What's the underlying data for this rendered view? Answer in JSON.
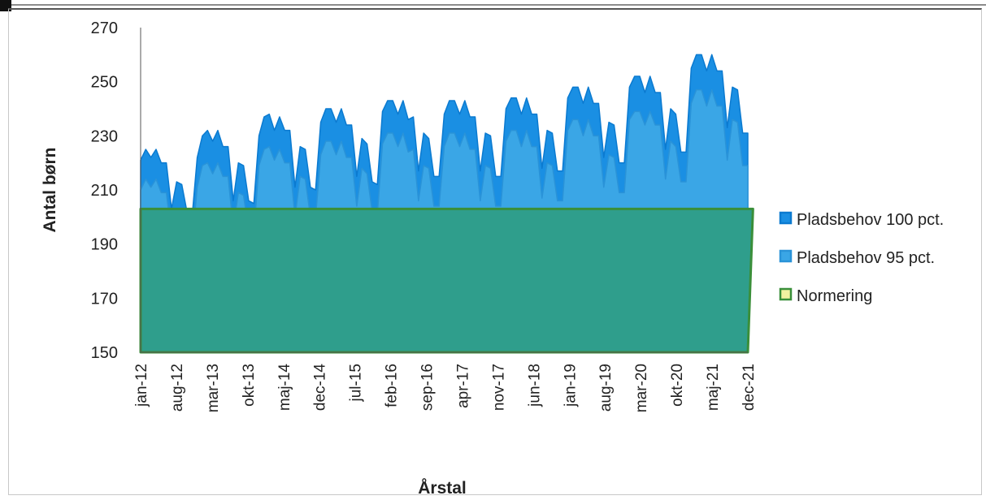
{
  "chart_data": {
    "type": "area",
    "title": "",
    "xlabel": "Årstal",
    "ylabel": "Antal børn",
    "ylim": [
      150,
      270
    ],
    "yticks": [
      150,
      170,
      190,
      210,
      230,
      250,
      270
    ],
    "x_tick_labels": [
      "jan-12",
      "aug-12",
      "mar-13",
      "okt-13",
      "maj-14",
      "dec-14",
      "jul-15",
      "feb-16",
      "sep-16",
      "apr-17",
      "nov-17",
      "jun-18",
      "jan-19",
      "aug-19",
      "mar-20",
      "okt-20",
      "maj-21",
      "dec-21"
    ],
    "legend_position": "right",
    "grid": false,
    "series": [
      {
        "name": "Pladsbehov 100 pct.",
        "color": "#1a8fe3",
        "values": [
          221,
          225,
          222,
          225,
          220,
          220,
          203,
          213,
          212,
          202,
          200,
          222,
          230,
          232,
          228,
          232,
          226,
          226,
          206,
          220,
          219,
          206,
          205,
          230,
          237,
          238,
          232,
          237,
          232,
          232,
          211,
          226,
          225,
          211,
          210,
          235,
          240,
          240,
          235,
          240,
          234,
          234,
          215,
          229,
          227,
          213,
          212,
          239,
          243,
          243,
          238,
          243,
          236,
          237,
          217,
          231,
          229,
          215,
          215,
          238,
          243,
          243,
          238,
          243,
          237,
          237,
          217,
          231,
          230,
          215,
          215,
          240,
          244,
          244,
          238,
          244,
          238,
          238,
          218,
          232,
          231,
          217,
          217,
          244,
          248,
          248,
          242,
          248,
          242,
          242,
          222,
          235,
          234,
          220,
          220,
          248,
          252,
          252,
          246,
          252,
          246,
          246,
          225,
          240,
          238,
          224,
          224,
          255,
          260,
          260,
          254,
          260,
          254,
          254,
          233,
          248,
          247,
          231,
          231
        ]
      },
      {
        "name": "Pladsbehov 95 pct.",
        "color": "#3fa7e4",
        "values": [
          210,
          214,
          211,
          214,
          209,
          209,
          193,
          202,
          201,
          192,
          190,
          211,
          219,
          220,
          216,
          220,
          215,
          215,
          196,
          209,
          208,
          195,
          194,
          219,
          225,
          226,
          221,
          225,
          220,
          220,
          200,
          215,
          214,
          200,
          200,
          223,
          228,
          228,
          223,
          228,
          222,
          222,
          204,
          218,
          216,
          202,
          201,
          227,
          231,
          231,
          226,
          231,
          224,
          225,
          206,
          219,
          218,
          204,
          204,
          226,
          231,
          231,
          226,
          231,
          225,
          225,
          206,
          219,
          218,
          204,
          204,
          228,
          232,
          232,
          226,
          232,
          226,
          226,
          207,
          220,
          219,
          206,
          206,
          232,
          236,
          236,
          230,
          236,
          230,
          230,
          211,
          223,
          222,
          209,
          209,
          236,
          239,
          239,
          234,
          239,
          234,
          234,
          214,
          228,
          226,
          213,
          213,
          242,
          247,
          247,
          241,
          247,
          241,
          241,
          221,
          236,
          235,
          219,
          219
        ]
      },
      {
        "name": "Normering",
        "color": "#2e9e8a",
        "values": [
          203,
          203,
          203,
          203,
          203,
          203,
          203,
          203,
          203,
          203,
          203,
          203,
          203,
          203,
          203,
          203,
          203,
          203,
          203,
          203,
          203,
          203,
          203,
          203,
          203,
          203,
          203,
          203,
          203,
          203,
          203,
          203,
          203,
          203,
          203,
          203,
          203,
          203,
          203,
          203,
          203,
          203,
          203,
          203,
          203,
          203,
          203,
          203,
          203,
          203,
          203,
          203,
          203,
          203,
          203,
          203,
          203,
          203,
          203,
          203,
          203,
          203,
          203,
          203,
          203,
          203,
          203,
          203,
          203,
          203,
          203,
          203,
          203,
          203,
          203,
          203,
          203,
          203,
          203,
          203,
          203,
          203,
          203,
          203,
          203,
          203,
          203,
          203,
          203,
          203,
          203,
          203,
          203,
          203,
          203,
          203,
          203,
          203,
          203,
          203,
          203,
          203,
          203,
          203,
          203,
          203,
          203,
          203,
          203,
          203,
          203,
          203,
          203,
          203,
          203,
          203,
          203,
          203,
          203,
          203
        ]
      }
    ]
  }
}
